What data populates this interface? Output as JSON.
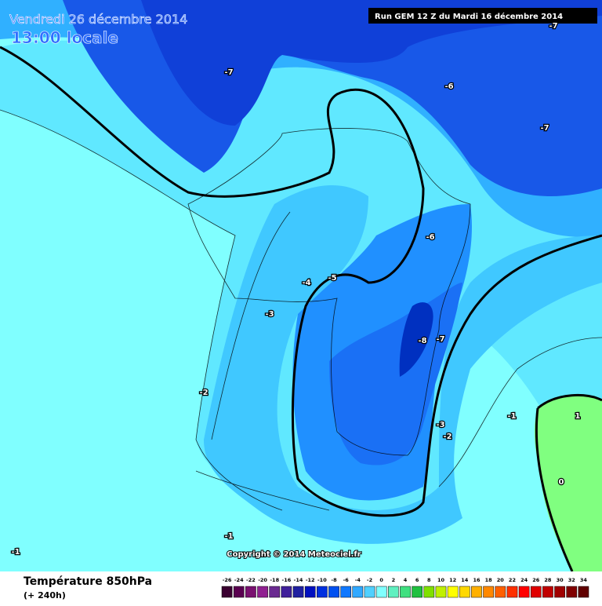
{
  "header": {
    "date": "Vendredi 26 décembre 2014",
    "time": "13:00 locale",
    "run": "Run GEM 12 Z du Mardi 16 décembre 2014"
  },
  "contour_labels": [
    "-7",
    "-7",
    "-6",
    "-7",
    "-6",
    "-5",
    "-4",
    "-3",
    "-8",
    "-7",
    "-2",
    "-1",
    "-3",
    "-2",
    "1",
    "0",
    "-1",
    "-1"
  ],
  "copyright": "Copyright © 2014 Meteociel.fr",
  "footer": {
    "title": "Température 850hPa",
    "lead": "(+ 240h)"
  },
  "legend": {
    "labels": [
      "-26",
      "-24",
      "-22",
      "-20",
      "-18",
      "-16",
      "-14",
      "-12",
      "-10",
      "-8",
      "-6",
      "-4",
      "-2",
      "0",
      "2",
      "4",
      "6",
      "8",
      "10",
      "12",
      "14",
      "16",
      "18",
      "20",
      "22",
      "24",
      "26",
      "28",
      "30",
      "32",
      "34"
    ],
    "colors": [
      "#3a0030",
      "#5a0050",
      "#7a1070",
      "#902090",
      "#6a2a90",
      "#40209a",
      "#2020a0",
      "#0010c0",
      "#0030e0",
      "#0050f0",
      "#1078ff",
      "#30a8ff",
      "#50d0ff",
      "#80ffff",
      "#60f0c0",
      "#40e080",
      "#20c040",
      "#80e000",
      "#c0f000",
      "#ffff00",
      "#ffd800",
      "#ffb000",
      "#ff8800",
      "#ff6000",
      "#ff3000",
      "#ff0000",
      "#e00000",
      "#c00000",
      "#a00000",
      "#800000",
      "#600000"
    ]
  }
}
